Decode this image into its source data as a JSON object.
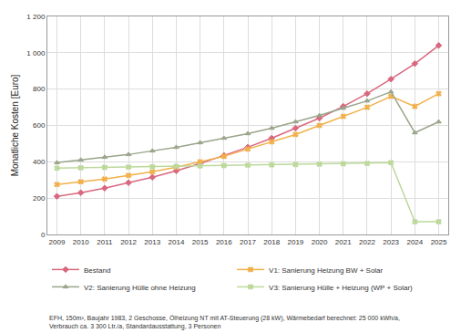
{
  "chart_data": {
    "type": "line",
    "y_label": "Monatliche Kosten [Euro]",
    "x": [
      2009,
      2010,
      2011,
      2012,
      2013,
      2014,
      2015,
      2016,
      2017,
      2018,
      2019,
      2020,
      2021,
      2022,
      2023,
      2024,
      2025
    ],
    "series": [
      {
        "name": "Bestand",
        "color": "#d9687f",
        "marker": "diamond",
        "values": [
          210,
          230,
          255,
          285,
          315,
          350,
          390,
          435,
          480,
          530,
          585,
          640,
          705,
          775,
          855,
          940,
          1040
        ]
      },
      {
        "name": "V1: Sanierung Heizung BW + Solar",
        "color": "#f2b04a",
        "marker": "x",
        "values": [
          275,
          290,
          305,
          325,
          345,
          370,
          400,
          430,
          470,
          510,
          550,
          600,
          650,
          700,
          760,
          705,
          775
        ]
      },
      {
        "name": "V2: Sanierung Hülle ohne Heizung",
        "color": "#9aa58a",
        "marker": "triangle-up",
        "values": [
          395,
          410,
          425,
          440,
          460,
          480,
          505,
          530,
          555,
          585,
          620,
          655,
          695,
          735,
          785,
          560,
          620
        ]
      },
      {
        "name": "V3: Sanierung Hülle + Heizung (WP + Solar)",
        "color": "#bcd99a",
        "marker": "x",
        "values": [
          365,
          367,
          369,
          371,
          373,
          375,
          377,
          379,
          381,
          383,
          385,
          387,
          389,
          391,
          395,
          70,
          70
        ]
      }
    ],
    "xlim": [
      2008.6,
      2025.4
    ],
    "xticks": [
      2009,
      2010,
      2011,
      2012,
      2013,
      2014,
      2015,
      2016,
      2017,
      2018,
      2019,
      2020,
      2021,
      2022,
      2023,
      2024,
      2025
    ],
    "ylim": [
      0,
      1200
    ],
    "yticks": [
      0,
      200,
      400,
      600,
      800,
      {
        "value": 1000,
        "label": "1 000"
      },
      {
        "value": 1200,
        "label": "1 200"
      }
    ],
    "grid": true,
    "legend": "bottom",
    "annotation": "EFH, 150m², Baujahr 1983, 2 Geschosse, Ölheizung NT mit AT-Steuerung (28 kW), Wärmebedarf berechnet: 25 000 kWh/a,\nVerbrauch ca. 3 300 Ltr./a, Standardausstattung, 3 Personen"
  }
}
